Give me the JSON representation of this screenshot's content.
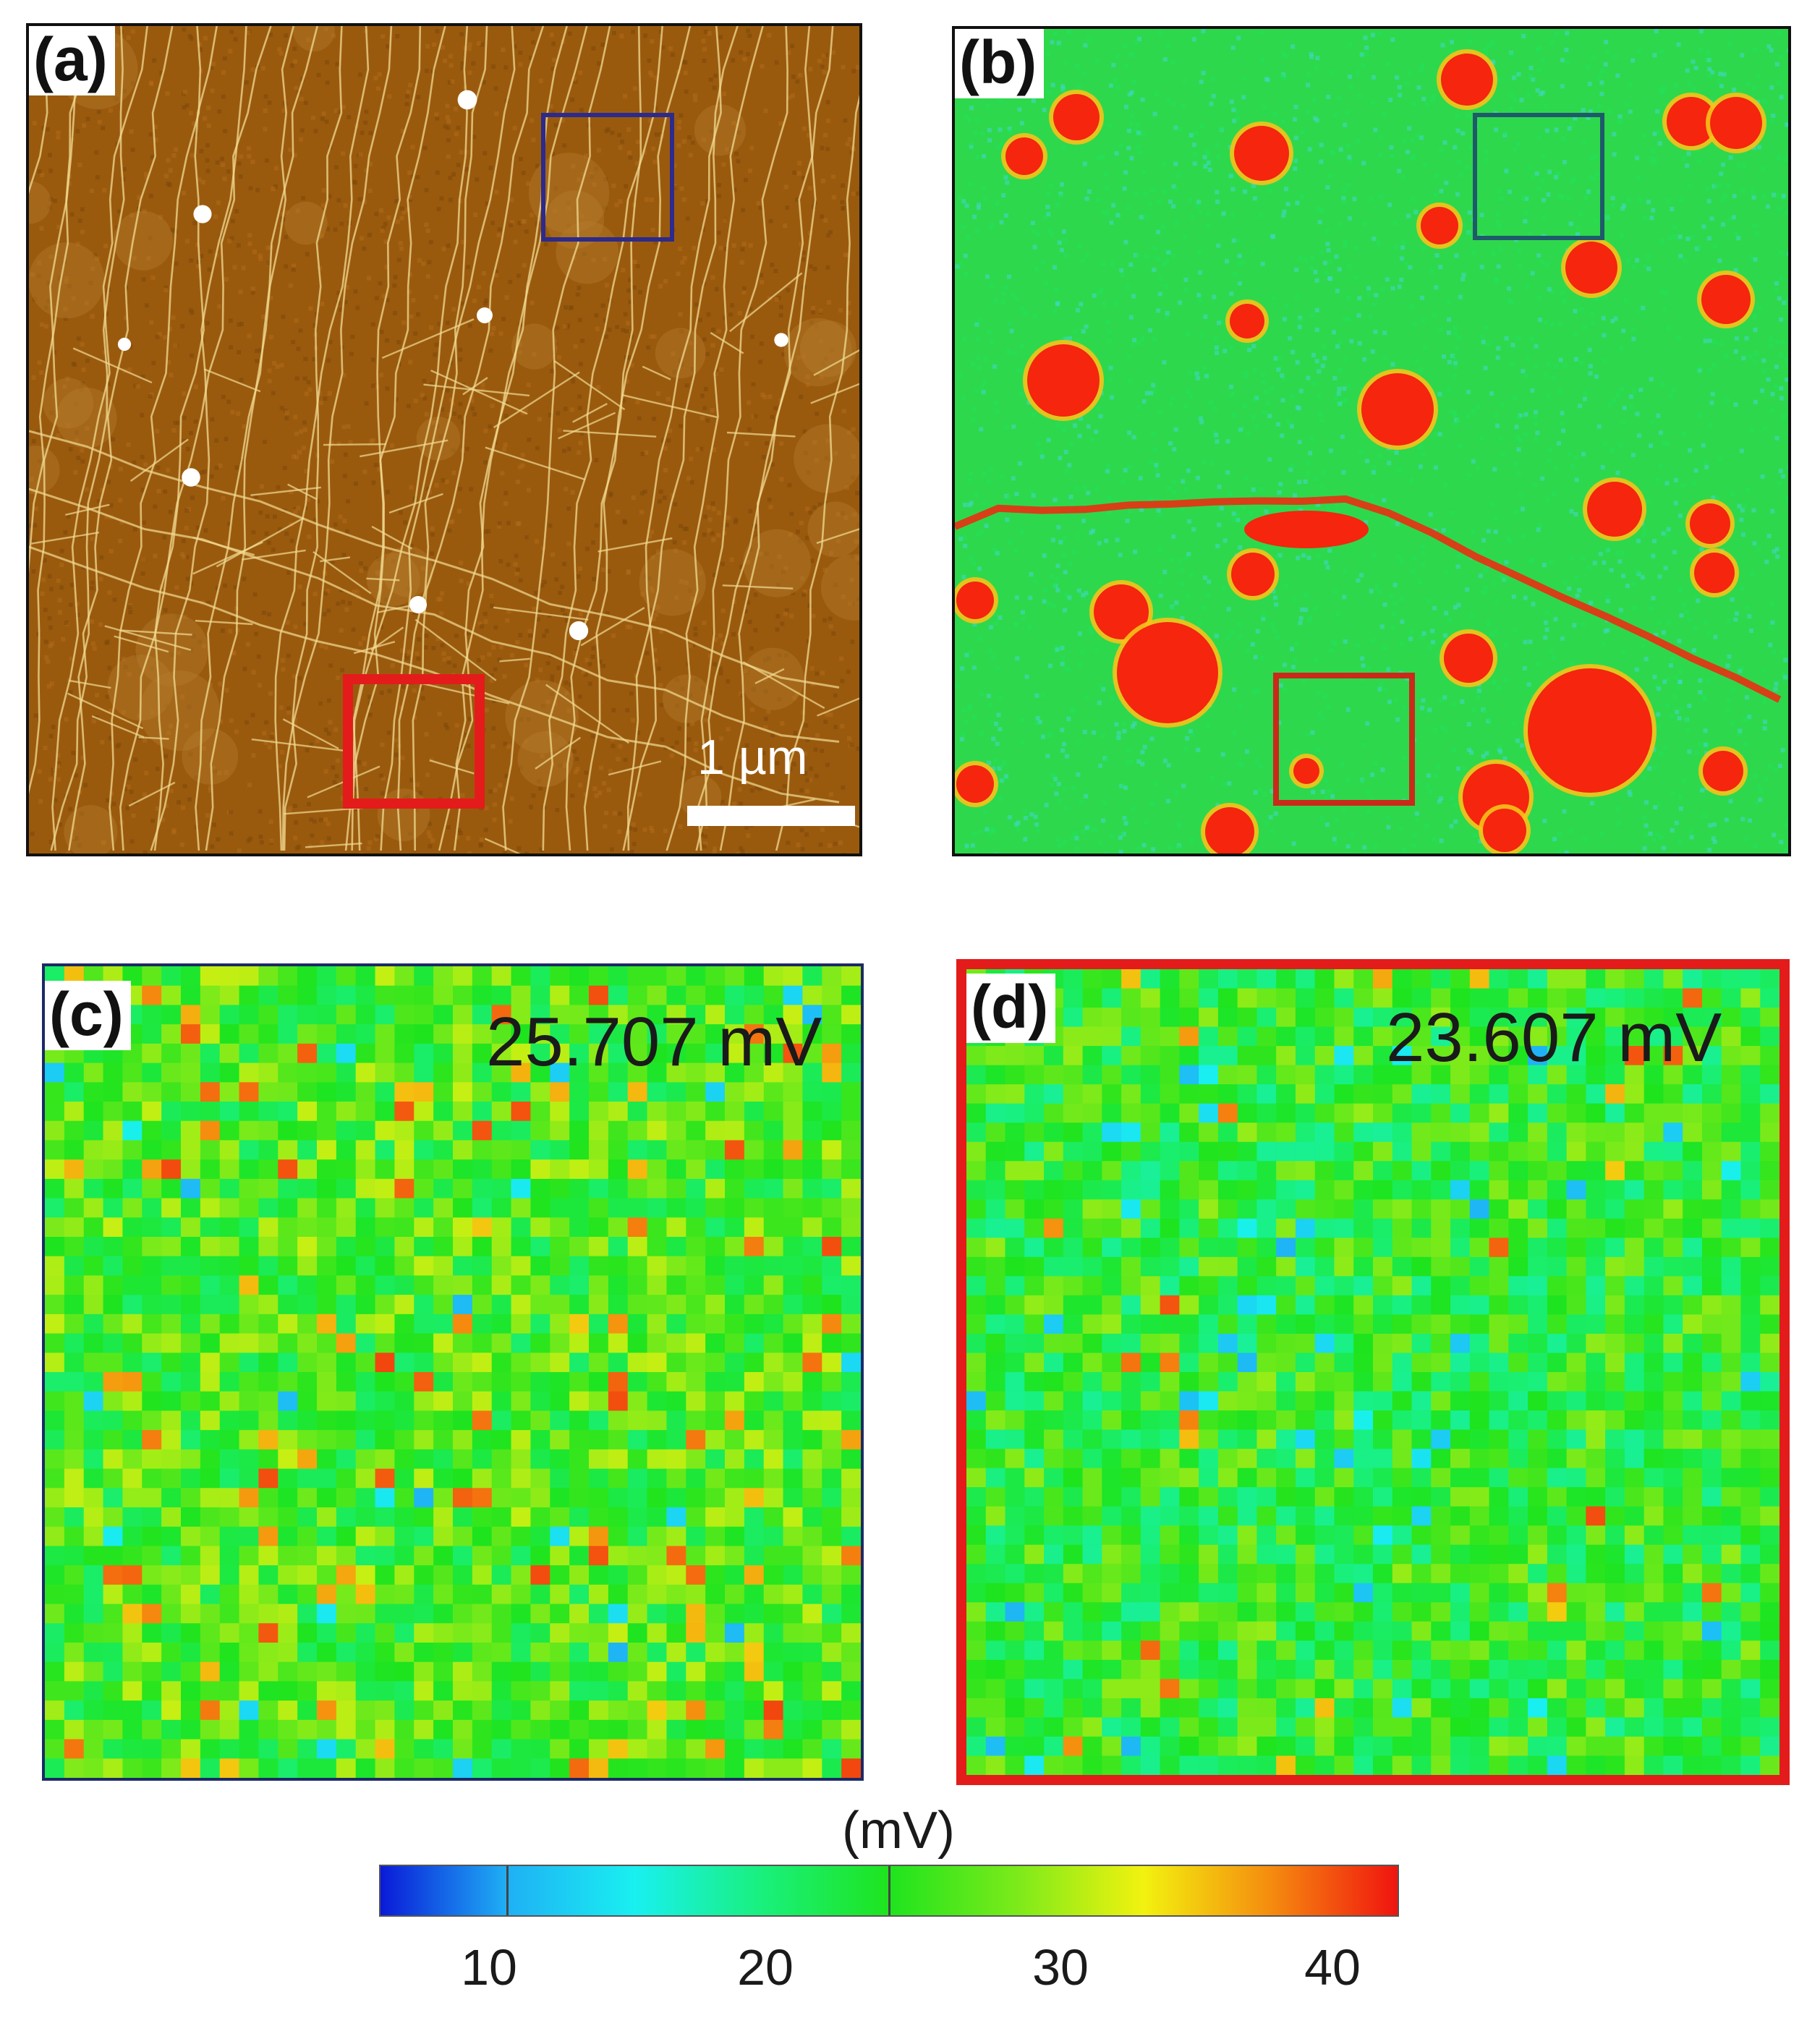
{
  "panels": {
    "a": {
      "label": "(a)",
      "scale_bar_text": "1 µm",
      "colors": {
        "base": "#9a5a0e",
        "ridge": "#f2dc93",
        "particle": "#ffffff"
      },
      "roi_colors": {
        "blue": "#2c2a8c",
        "red": "#e41b1b"
      }
    },
    "b": {
      "label": "(b)",
      "colors": {
        "background": "#2ed84c",
        "domain": "#f5250e",
        "domain_edge": "#f7c21a",
        "low": "#3fd9c8"
      },
      "roi_colors": {
        "blue": "#1f5a6a",
        "red": "#c92a1a"
      }
    },
    "c": {
      "label": "(c)",
      "value": "25.707 mV",
      "border_color": "#1c2a66"
    },
    "d": {
      "label": "(d)",
      "value": "23.607 mV",
      "border_color": "#e41b1b"
    }
  },
  "colorbar": {
    "title": "(mV)",
    "ticks": [
      "10",
      "20",
      "30",
      "40"
    ],
    "tick_values": [
      10,
      20,
      30,
      40
    ],
    "range": [
      5,
      44
    ],
    "colors": [
      "#0a1ad8",
      "#1fb0f5",
      "#19f0f0",
      "#19f07d",
      "#1ee41e",
      "#7bea1a",
      "#f2f20f",
      "#f58c0f",
      "#f0140f"
    ]
  }
}
